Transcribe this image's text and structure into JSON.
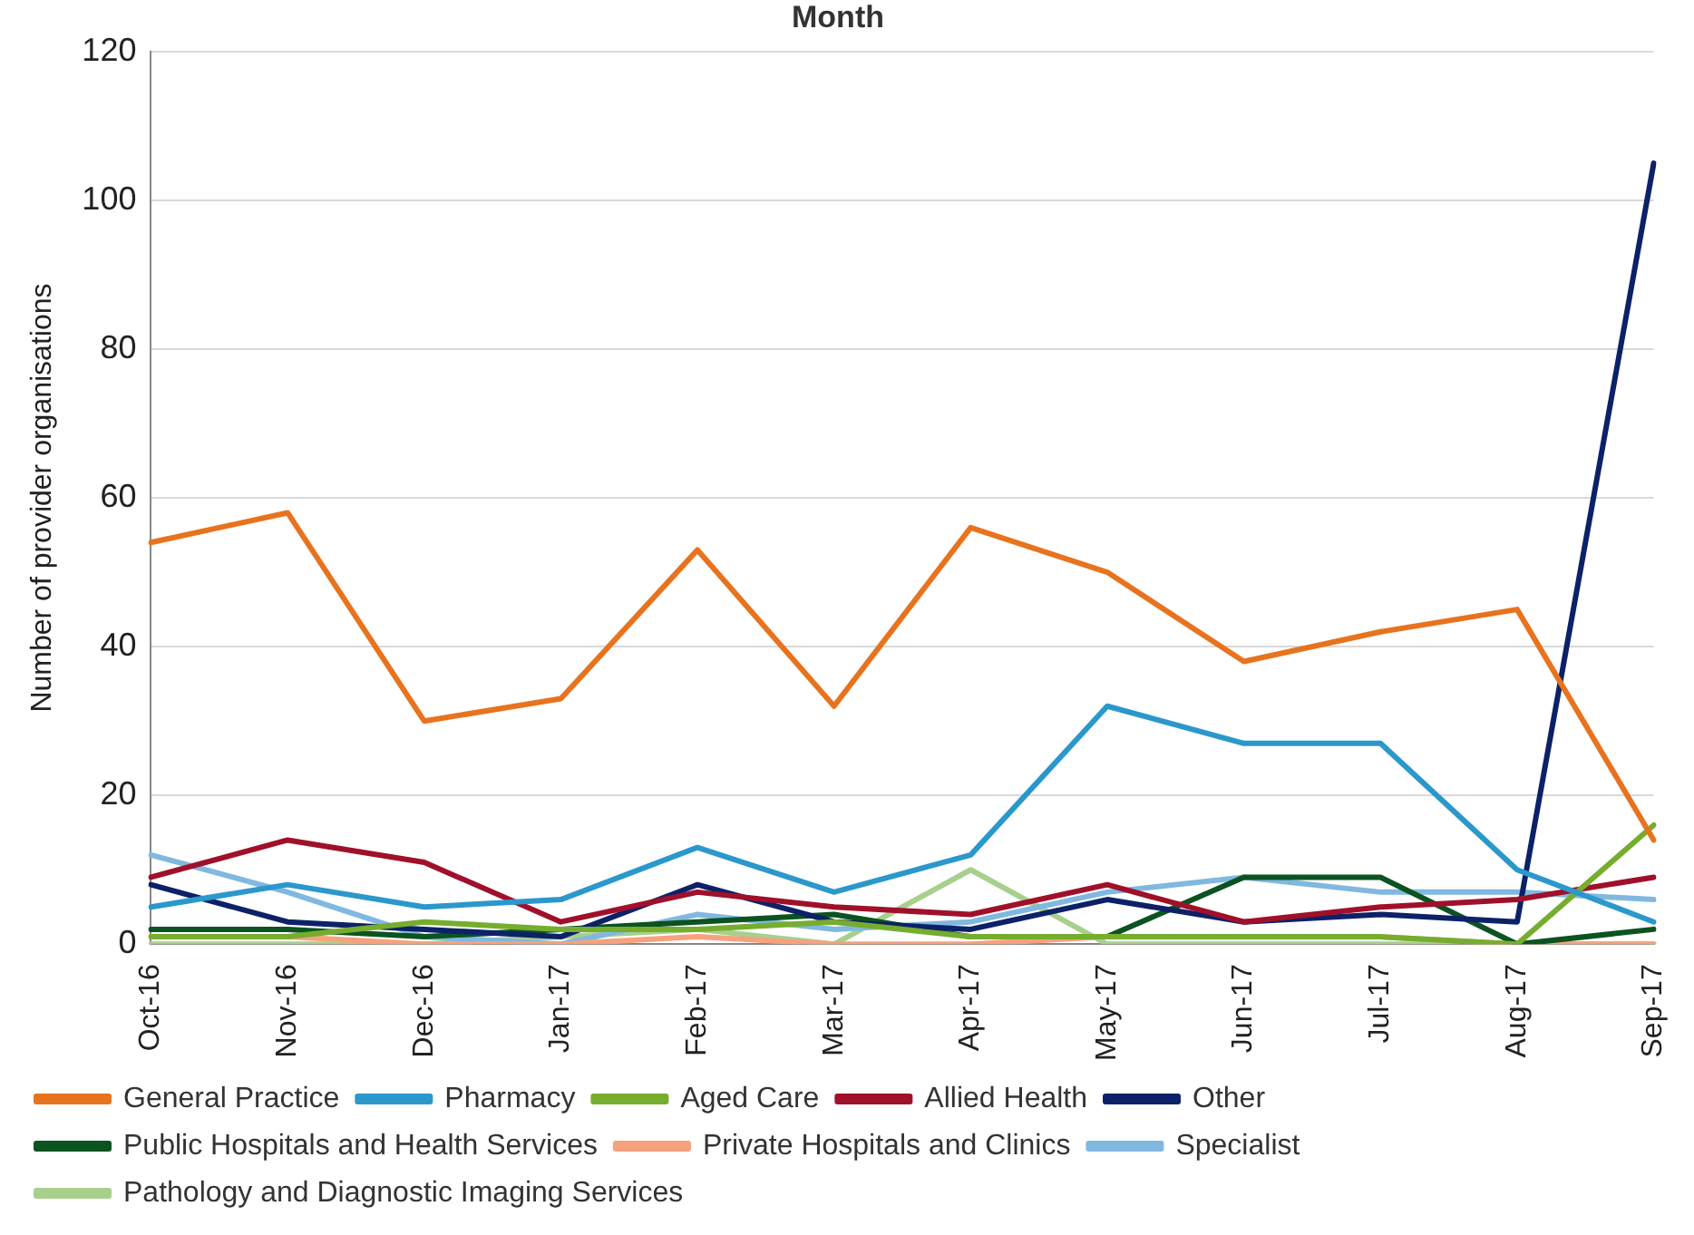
{
  "chart_data": {
    "type": "line",
    "title": "Month",
    "ylabel": "Number of provider organisations",
    "categories": [
      "Oct-16",
      "Nov-16",
      "Dec-16",
      "Jan-17",
      "Feb-17",
      "Mar-17",
      "Apr-17",
      "May-17",
      "Jun-17",
      "Jul-17",
      "Aug-17",
      "Sep-17"
    ],
    "series": [
      {
        "name": "General Practice",
        "color": "#e8731e",
        "values": [
          54,
          58,
          30,
          33,
          53,
          32,
          56,
          50,
          38,
          42,
          45,
          14
        ]
      },
      {
        "name": "Pharmacy",
        "color": "#2b98cc",
        "values": [
          5,
          8,
          5,
          6,
          13,
          7,
          12,
          32,
          27,
          27,
          10,
          3
        ]
      },
      {
        "name": "Aged Care",
        "color": "#76ad2e",
        "values": [
          1,
          1,
          3,
          2,
          2,
          3,
          1,
          1,
          1,
          1,
          0,
          16
        ]
      },
      {
        "name": "Allied Health",
        "color": "#a0102a",
        "values": [
          9,
          14,
          11,
          3,
          7,
          5,
          4,
          8,
          3,
          5,
          6,
          9
        ]
      },
      {
        "name": "Other",
        "color": "#0c2168",
        "values": [
          8,
          3,
          2,
          1,
          8,
          3,
          2,
          6,
          3,
          4,
          3,
          105
        ]
      },
      {
        "name": "Public Hospitals and Health Services",
        "color": "#0b5320",
        "values": [
          2,
          2,
          1,
          2,
          3,
          4,
          1,
          1,
          9,
          9,
          0,
          2
        ]
      },
      {
        "name": "Private Hospitals and Clinics",
        "color": "#f6a27e",
        "values": [
          1,
          1,
          0,
          0,
          1,
          0,
          0,
          1,
          1,
          1,
          0,
          0
        ]
      },
      {
        "name": "Specialist",
        "color": "#80b8e0",
        "values": [
          12,
          7,
          1,
          0,
          4,
          2,
          3,
          7,
          9,
          7,
          7,
          6
        ]
      },
      {
        "name": "Pathology and Diagnostic Imaging Services",
        "color": "#a8d08d",
        "values": [
          0,
          0,
          0,
          1,
          2,
          0,
          10,
          0,
          0,
          0,
          0,
          0
        ]
      }
    ],
    "ylim": [
      0,
      120
    ],
    "yticks": [
      0,
      20,
      40,
      60,
      80,
      100,
      120
    ],
    "grid": "y",
    "legend": "bottom",
    "marker": "none",
    "line_style": "solid"
  }
}
